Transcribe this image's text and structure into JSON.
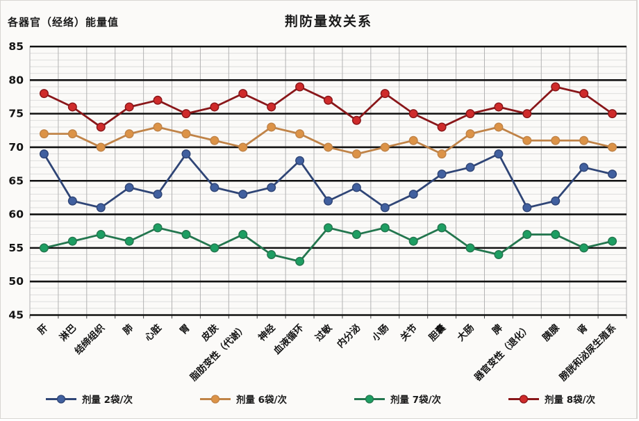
{
  "header": {
    "title": "荆防量效关系",
    "y_axis_title": "各器官（经络）能量值"
  },
  "chart_data": {
    "type": "line",
    "title": "荆防量效关系",
    "ylabel": "各器官（经络）能量值",
    "xlabel": "",
    "ylim": [
      45,
      85
    ],
    "ytick_step": 5,
    "minor_step": 1,
    "grid": true,
    "legend_position": "bottom",
    "grid_color_major": "#111111",
    "grid_color_minor": "#d9d9d9",
    "grid_color_vertical": "#b3b3b3",
    "yticks": [
      45,
      50,
      55,
      60,
      65,
      70,
      75,
      80,
      85
    ],
    "categories": [
      "肝",
      "淋巴",
      "结缔组织",
      "肺",
      "心脏",
      "胃",
      "皮肤",
      "脂肪变性（代谢）",
      "神经",
      "血液循环",
      "过敏",
      "内分泌",
      "小肠",
      "关节",
      "胆囊",
      "大肠",
      "脾",
      "器官变性（退化）",
      "胰腺",
      "肾",
      "膀胱和泌尿生殖系"
    ],
    "series": [
      {
        "name": "剂量 2袋/次",
        "line_color": "#2f4576",
        "marker_color": "#41609f",
        "values": [
          69,
          62,
          61,
          64,
          63,
          69,
          64,
          63,
          64,
          68,
          62,
          64,
          61,
          63,
          66,
          67,
          69,
          61,
          62,
          67,
          66
        ]
      },
      {
        "name": "剂量 6袋/次",
        "line_color": "#c08347",
        "marker_color": "#dc9347",
        "values": [
          72,
          72,
          70,
          72,
          73,
          72,
          71,
          70,
          73,
          72,
          70,
          69,
          70,
          71,
          69,
          72,
          73,
          71,
          71,
          71,
          70
        ]
      },
      {
        "name": "剂量 7袋/次",
        "line_color": "#23764e",
        "marker_color": "#1d9e62",
        "values": [
          55,
          56,
          57,
          56,
          58,
          57,
          55,
          57,
          54,
          53,
          58,
          57,
          58,
          56,
          58,
          55,
          54,
          57,
          57,
          55,
          56
        ]
      },
      {
        "name": "剂量 8袋/次",
        "line_color": "#891619",
        "marker_color": "#cf2b2b",
        "values": [
          78,
          76,
          73,
          76,
          77,
          75,
          76,
          78,
          76,
          79,
          77,
          74,
          78,
          75,
          73,
          75,
          76,
          75,
          79,
          78,
          75
        ]
      }
    ]
  }
}
